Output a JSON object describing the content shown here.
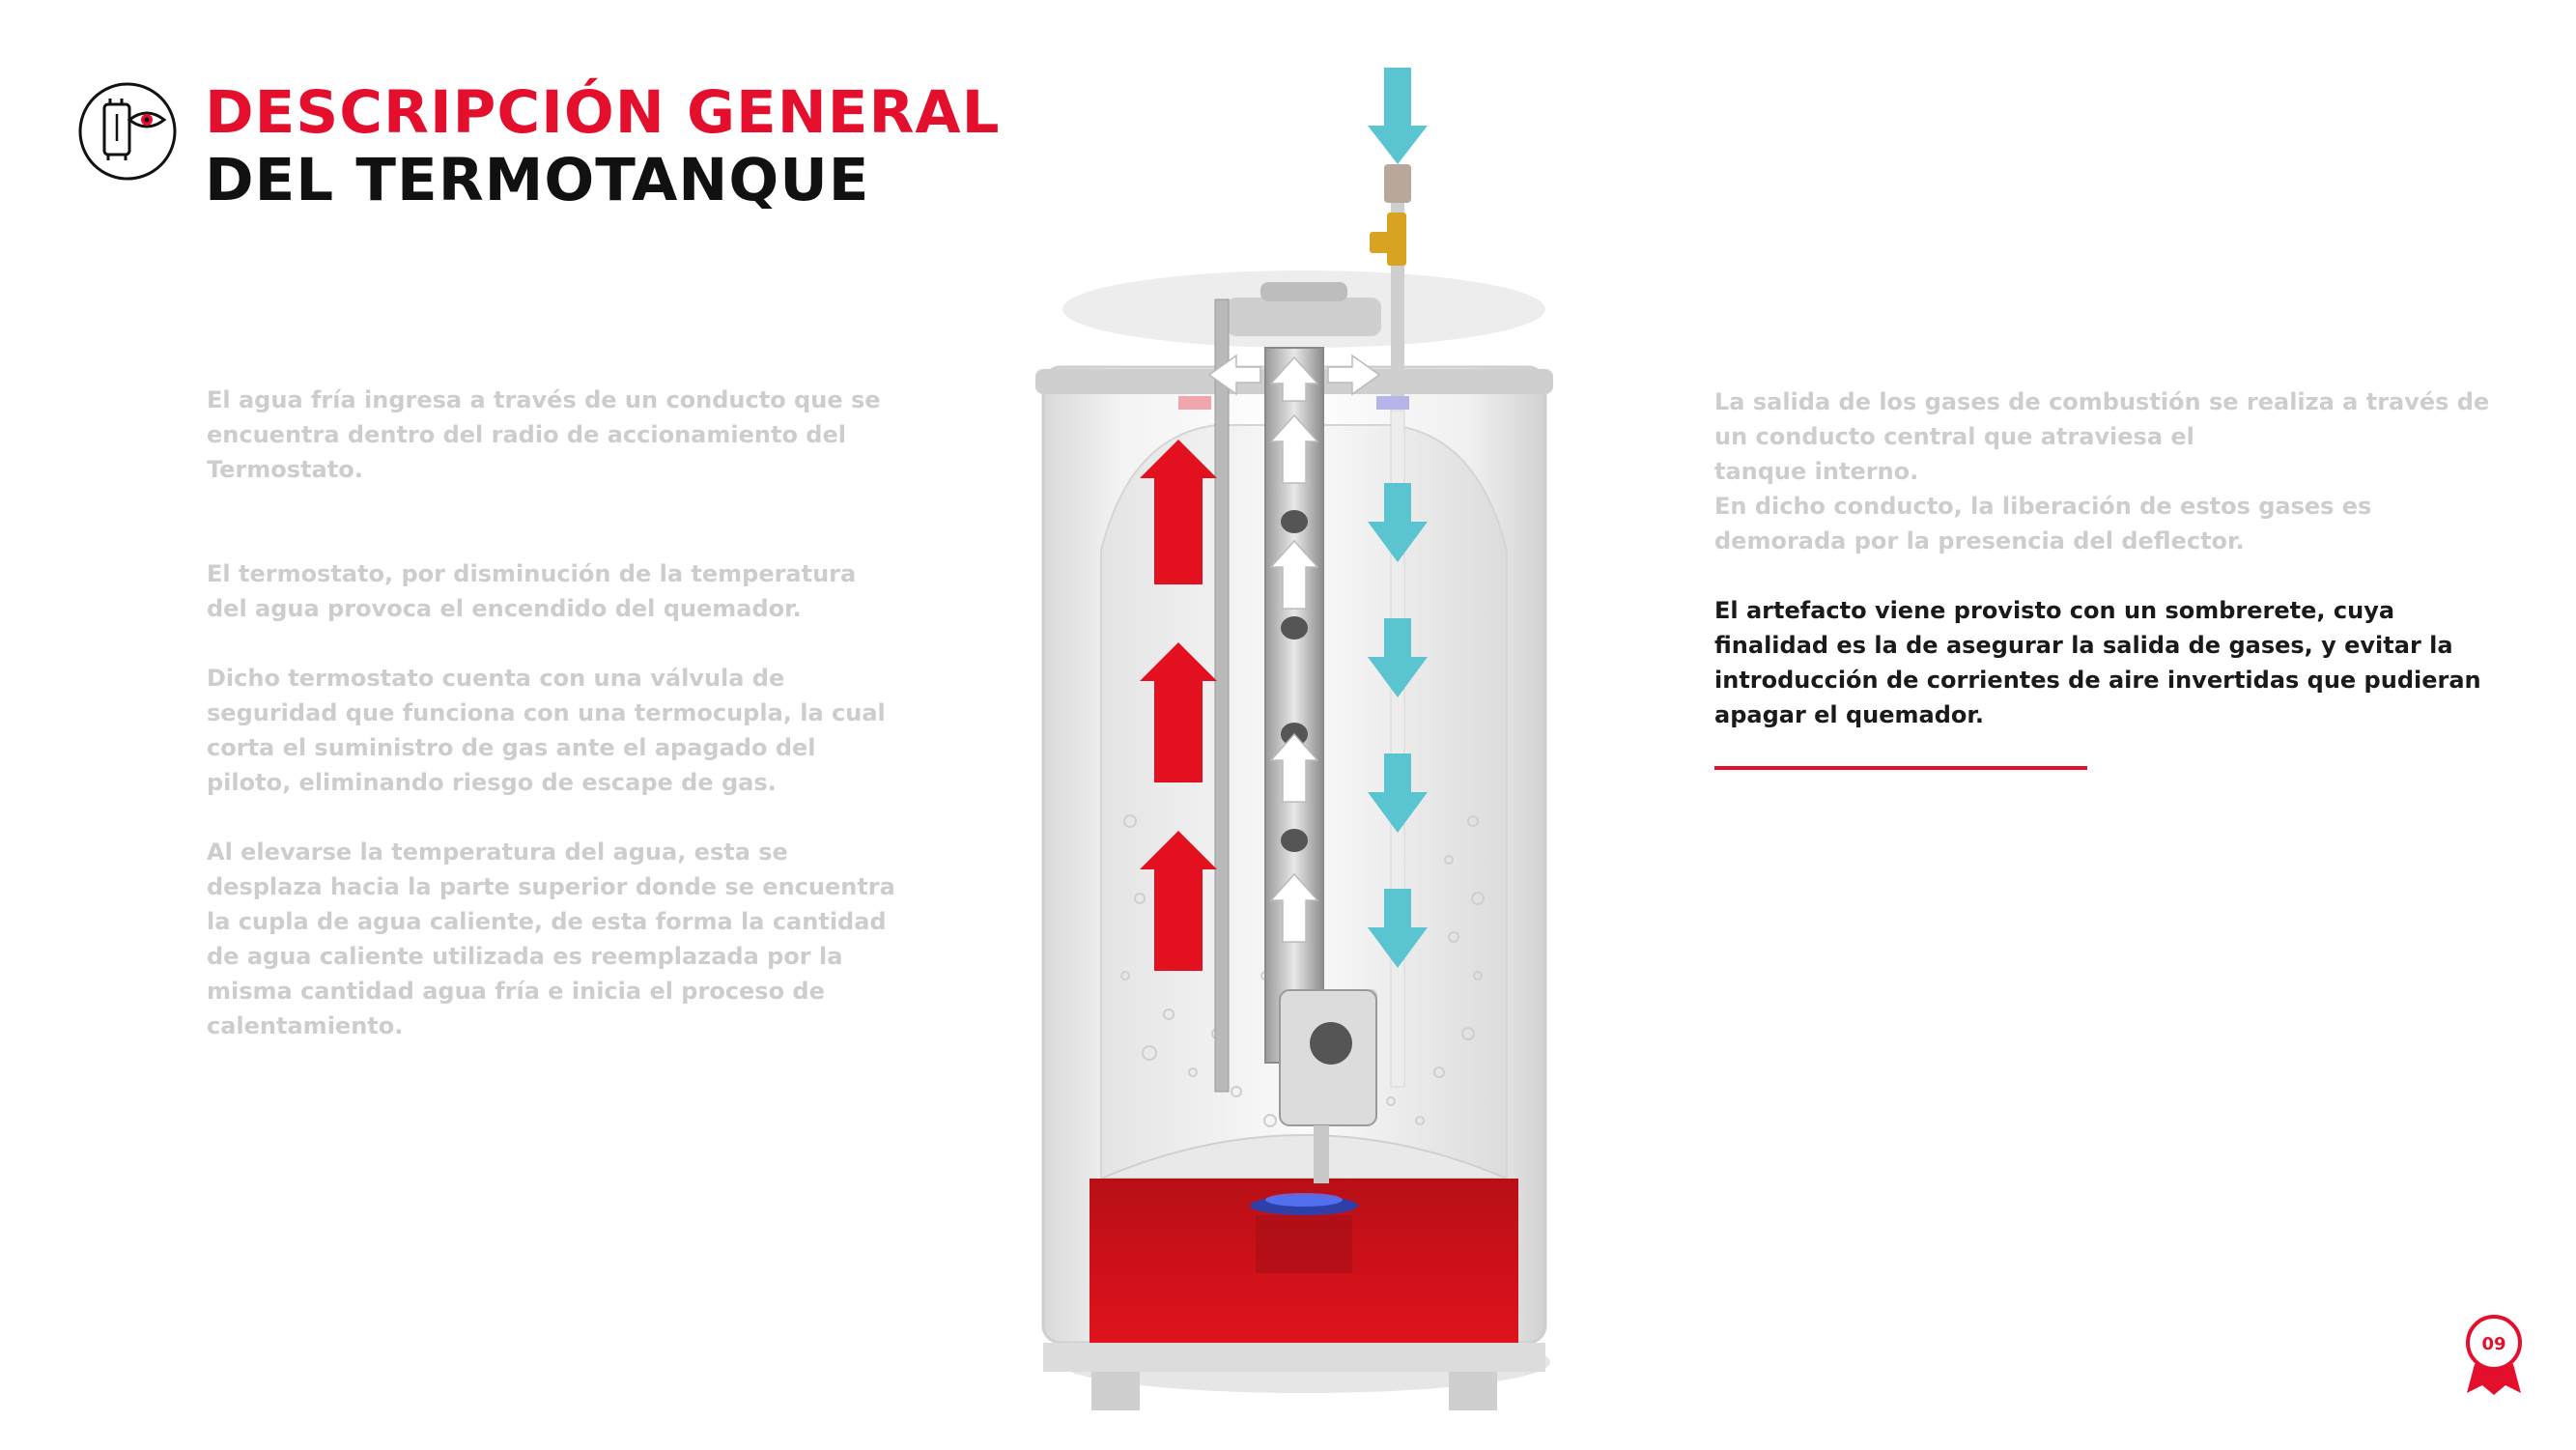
{
  "header": {
    "title_line1": "DESCRIPCIÓN GENERAL",
    "title_line2": "DEL TERMOTANQUE",
    "icon": "water-heater-eye-icon"
  },
  "left_text": [
    "El agua fría ingresa a través de un conducto que se encuentra dentro del radio de accionamiento del Termostato.",
    "El termostato, por disminución de la temperatura del agua provoca el encendido del quemador.",
    "Dicho termostato cuenta con una válvula de seguridad que funciona con una termocupla, la cual corta el suministro de gas ante el apagado del piloto, eliminando riesgo de escape de gas.",
    "Al elevarse la temperatura del agua, esta se desplaza hacia la parte superior donde se encuentra la cupla de agua caliente, de esta forma la cantidad de agua caliente utilizada es reemplazada por la misma cantidad agua fría e inicia el proceso de calentamiento."
  ],
  "right_text": {
    "p1_line1": "La salida de los gases de combustión se realiza a través de",
    "p1_line2": "un conducto central que atraviesa el",
    "p1_line3": "tanque interno.",
    "p1_line4": "En dicho conducto, la liberación de estos gases es",
    "p1_line5": "demorada por la presencia del deflector.",
    "p2": "El artefacto viene provisto con un sombrerete, cuya finalidad es la de asegurar la salida de gases, y evitar la introducción de corrientes de aire invertidas que pudieran apagar el quemador."
  },
  "page_number": "09",
  "colors": {
    "accent_red": "#e30f2d",
    "cold_arrow": "#5bc4d1",
    "hot_arrow": "#e3101f",
    "muted_text": "#cdcdcd"
  }
}
